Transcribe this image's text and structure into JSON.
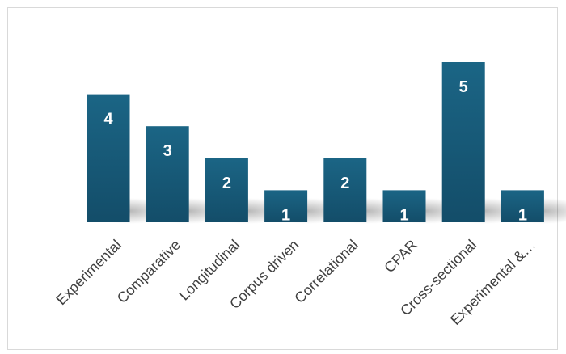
{
  "chart_data": {
    "type": "bar",
    "title": "",
    "xlabel": "",
    "ylabel": "",
    "categories": [
      "Experimental",
      "Comparative",
      "Longitudinal",
      "Corpus driven",
      "Correlational",
      "CPAR",
      "Cross-sectional",
      "Experimental &…"
    ],
    "values": [
      4,
      3,
      2,
      1,
      2,
      1,
      5,
      1
    ],
    "ylim": [
      0,
      5
    ],
    "grid": false,
    "legend": "none",
    "data_labels": true,
    "colors": {
      "bar_top": "#1b6585",
      "bar_bottom": "#134d69",
      "label": "#ffffff",
      "tick": "#404040",
      "border": "#d9d9d9"
    }
  }
}
